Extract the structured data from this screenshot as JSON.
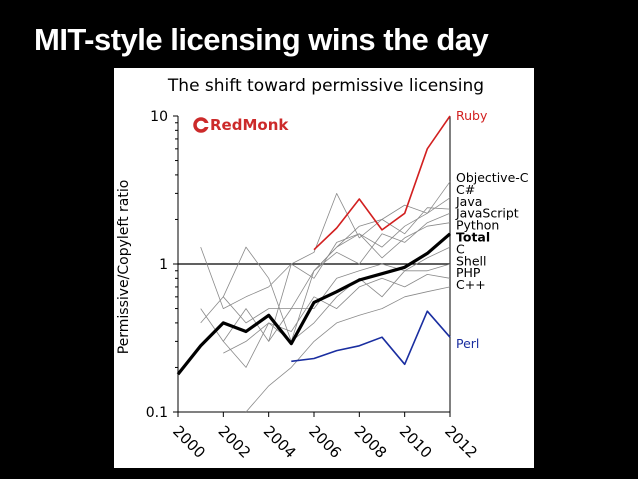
{
  "slide": {
    "title": "MIT-style licensing wins the day"
  },
  "colors": {
    "background": "#000000",
    "panel": "#ffffff",
    "ruby": "#d22020",
    "perl": "#1a2ea0",
    "total": "#000000",
    "other": "#8a8a8a",
    "logo": "#cc2a2a"
  },
  "logo": {
    "text": "RedMonk",
    "icon": "redmonk-c-icon"
  },
  "chart_data": {
    "type": "line",
    "title": "The shift toward permissive licensing",
    "xlabel": "",
    "ylabel": "Permissive/Copyleft ratio",
    "yscale": "log",
    "xlim": [
      2000,
      2012
    ],
    "ylim": [
      0.1,
      10
    ],
    "yticks": [
      0.1,
      1,
      10
    ],
    "ytick_labels": [
      "0.1",
      "1",
      "10"
    ],
    "xticks": [
      2000,
      2002,
      2004,
      2006,
      2008,
      2010,
      2012
    ],
    "xtick_labels": [
      "2000",
      "2002",
      "2004",
      "2006",
      "2008",
      "2010",
      "2012"
    ],
    "reference_line": 1,
    "legend_position": "right",
    "series": [
      {
        "name": "Ruby",
        "style": "ruby",
        "x": [
          2006,
          2007,
          2008,
          2009,
          2010,
          2011,
          2012
        ],
        "y": [
          1.25,
          1.75,
          2.75,
          1.7,
          2.2,
          6.0,
          10.0
        ]
      },
      {
        "name": "Objective-C",
        "style": "other",
        "x": [
          2006,
          2007,
          2008,
          2009,
          2010,
          2011,
          2012
        ],
        "y": [
          0.9,
          1.3,
          1.6,
          1.3,
          1.8,
          2.2,
          3.6
        ]
      },
      {
        "name": "C#",
        "style": "other",
        "x": [
          2004,
          2005,
          2006,
          2007,
          2008,
          2009,
          2010,
          2011,
          2012
        ],
        "y": [
          0.3,
          1.0,
          1.2,
          3.0,
          1.5,
          2.0,
          2.5,
          2.2,
          2.8
        ]
      },
      {
        "name": "Java",
        "style": "other",
        "x": [
          2001,
          2002,
          2003,
          2004,
          2005,
          2006,
          2007,
          2008,
          2009,
          2010,
          2011,
          2012
        ],
        "y": [
          0.4,
          0.6,
          0.4,
          0.5,
          0.5,
          0.9,
          1.3,
          1.8,
          2.0,
          1.6,
          2.4,
          2.35
        ]
      },
      {
        "name": "JavaScript",
        "style": "other",
        "x": [
          2002,
          2003,
          2004,
          2005,
          2006,
          2007,
          2008,
          2009,
          2010,
          2011,
          2012
        ],
        "y": [
          0.6,
          1.3,
          0.8,
          0.3,
          0.9,
          1.2,
          1.0,
          1.6,
          1.4,
          1.9,
          2.2
        ]
      },
      {
        "name": "Python",
        "style": "other",
        "x": [
          2001,
          2002,
          2003,
          2004,
          2005,
          2006,
          2007,
          2008,
          2009,
          2010,
          2011,
          2012
        ],
        "y": [
          1.3,
          0.5,
          0.6,
          0.7,
          1.0,
          0.8,
          1.4,
          1.6,
          1.1,
          1.5,
          1.8,
          1.9
        ]
      },
      {
        "name": "Total",
        "style": "total",
        "x": [
          2000,
          2001,
          2002,
          2003,
          2004,
          2005,
          2006,
          2007,
          2008,
          2009,
          2010,
          2011,
          2012
        ],
        "y": [
          0.18,
          0.28,
          0.4,
          0.35,
          0.45,
          0.29,
          0.55,
          0.65,
          0.78,
          0.86,
          0.95,
          1.18,
          1.6
        ]
      },
      {
        "name": "C",
        "style": "other",
        "x": [
          2002,
          2003,
          2004,
          2005,
          2006,
          2007,
          2008,
          2009,
          2010,
          2011,
          2012
        ],
        "y": [
          0.3,
          0.5,
          0.3,
          0.5,
          0.5,
          0.8,
          0.9,
          1.0,
          0.9,
          1.1,
          1.3
        ]
      },
      {
        "name": "Shell",
        "style": "other",
        "x": [
          2001,
          2002,
          2003,
          2004,
          2005,
          2006,
          2007,
          2008,
          2009,
          2010,
          2011,
          2012
        ],
        "y": [
          0.5,
          0.3,
          0.2,
          0.4,
          0.3,
          0.4,
          0.6,
          0.8,
          0.6,
          0.9,
          0.9,
          1.0
        ]
      },
      {
        "name": "PHP",
        "style": "other",
        "x": [
          2002,
          2003,
          2004,
          2005,
          2006,
          2007,
          2008,
          2009,
          2010,
          2011,
          2012
        ],
        "y": [
          0.25,
          0.3,
          0.4,
          0.35,
          0.6,
          0.5,
          0.7,
          0.8,
          0.7,
          0.85,
          0.8
        ]
      },
      {
        "name": "C++",
        "style": "other",
        "x": [
          2003,
          2004,
          2005,
          2006,
          2007,
          2008,
          2009,
          2010,
          2011,
          2012
        ],
        "y": [
          0.1,
          0.15,
          0.2,
          0.3,
          0.4,
          0.45,
          0.5,
          0.6,
          0.65,
          0.7
        ]
      },
      {
        "name": "Perl",
        "style": "perl",
        "x": [
          2005,
          2006,
          2007,
          2008,
          2009,
          2010,
          2011,
          2012
        ],
        "y": [
          0.22,
          0.23,
          0.26,
          0.28,
          0.32,
          0.21,
          0.48,
          0.32
        ]
      }
    ],
    "legend_labels": [
      {
        "text": "Ruby",
        "style": "ruby",
        "bold": false
      },
      {
        "text": "Objective-C",
        "style": "label",
        "bold": false
      },
      {
        "text": "C#",
        "style": "label",
        "bold": false
      },
      {
        "text": "Java",
        "style": "label",
        "bold": false
      },
      {
        "text": "JavaScript",
        "style": "label",
        "bold": false
      },
      {
        "text": "Python",
        "style": "label",
        "bold": false
      },
      {
        "text": "Total",
        "style": "label",
        "bold": true
      },
      {
        "text": "C",
        "style": "label",
        "bold": false
      },
      {
        "text": "Shell",
        "style": "label",
        "bold": false
      },
      {
        "text": "PHP",
        "style": "label",
        "bold": false
      },
      {
        "text": "C++",
        "style": "label",
        "bold": false
      },
      {
        "text": "Perl",
        "style": "perl",
        "bold": false
      }
    ]
  }
}
